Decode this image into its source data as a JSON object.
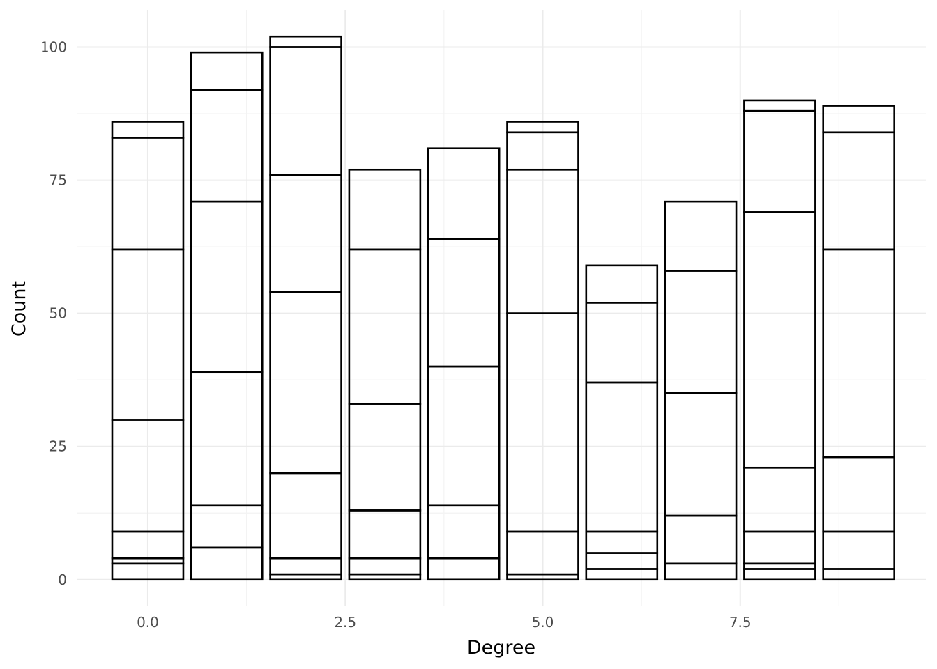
{
  "chart_data": {
    "type": "bar",
    "stacked": true,
    "xlabel": "Degree",
    "ylabel": "Count",
    "x": [
      0,
      1,
      2,
      3,
      4,
      5,
      6,
      7,
      8,
      9
    ],
    "stacks": [
      [
        3,
        1,
        5,
        21,
        32,
        21,
        3
      ],
      [
        6,
        8,
        25,
        32,
        21,
        7
      ],
      [
        1,
        3,
        16,
        34,
        22,
        24,
        2
      ],
      [
        1,
        3,
        9,
        20,
        29,
        15
      ],
      [
        4,
        10,
        26,
        24,
        17
      ],
      [
        1,
        8,
        41,
        27,
        7,
        2
      ],
      [
        2,
        3,
        4,
        28,
        15,
        7
      ],
      [
        3,
        9,
        23,
        23,
        13
      ],
      [
        2,
        1,
        6,
        12,
        48,
        19,
        2
      ],
      [
        2,
        7,
        14,
        39,
        22,
        5
      ]
    ],
    "totals": [
      86,
      99,
      102,
      77,
      81,
      86,
      59,
      71,
      90,
      89
    ],
    "xlim": [
      -0.9,
      9.85
    ],
    "ylim": [
      -5,
      107
    ],
    "xticks": [
      0.0,
      2.5,
      5.0,
      7.5
    ],
    "xtick_labels": [
      "0.0",
      "2.5",
      "5.0",
      "7.5"
    ],
    "yticks": [
      0,
      25,
      50,
      75,
      100
    ],
    "ytick_labels": [
      "0",
      "25",
      "50",
      "75",
      "100"
    ],
    "bar_fill": "#ffffff",
    "bar_outline": "#000000",
    "gridlines": true,
    "theme": "minimal"
  }
}
